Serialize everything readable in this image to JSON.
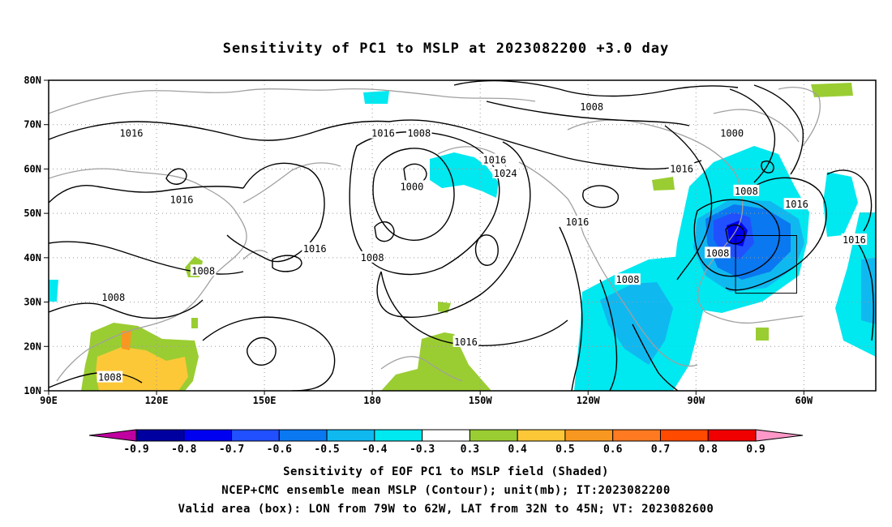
{
  "title": "Sensitivity of PC1 to MSLP at 2023082200 +3.0 day",
  "map": {
    "lat_labels": [
      "80N",
      "70N",
      "60N",
      "50N",
      "40N",
      "30N",
      "20N",
      "10N"
    ],
    "lon_labels": [
      "90E",
      "120E",
      "150E",
      "180",
      "150W",
      "120W",
      "90W",
      "60W"
    ],
    "lon_range_deg_east": [
      90,
      320
    ],
    "lat_range_deg_north": [
      10,
      80
    ],
    "grid": "dotted",
    "contour_color": "#000000",
    "coastline_color": "#a0a0a0",
    "contour_labels": [
      {
        "text": "1016",
        "lon": 113,
        "lat": 68
      },
      {
        "text": "1016",
        "lon": 127,
        "lat": 53
      },
      {
        "text": "1016",
        "lon": 164,
        "lat": 42
      },
      {
        "text": "1008",
        "lon": 133,
        "lat": 37
      },
      {
        "text": "1008",
        "lon": 108,
        "lat": 31
      },
      {
        "text": "1008",
        "lon": 107,
        "lat": 13
      },
      {
        "text": "1016",
        "lon": 183,
        "lat": 68
      },
      {
        "text": "1008",
        "lon": 193,
        "lat": 68
      },
      {
        "text": "1000",
        "lon": 191,
        "lat": 56
      },
      {
        "text": "1008",
        "lon": 180,
        "lat": 40
      },
      {
        "text": "1016",
        "lon": 214,
        "lat": 62
      },
      {
        "text": "1024",
        "lon": 217,
        "lat": 59
      },
      {
        "text": "1008",
        "lon": 241,
        "lat": 74
      },
      {
        "text": "1016",
        "lon": 237,
        "lat": 48
      },
      {
        "text": "1016",
        "lon": 206,
        "lat": 21
      },
      {
        "text": "1008",
        "lon": 251,
        "lat": 35
      },
      {
        "text": "1016",
        "lon": 266,
        "lat": 60
      },
      {
        "text": "1000",
        "lon": 280,
        "lat": 68
      },
      {
        "text": "1008",
        "lon": 284,
        "lat": 55
      },
      {
        "text": "1016",
        "lon": 298,
        "lat": 52
      },
      {
        "text": "1008",
        "lon": 276,
        "lat": 41
      },
      {
        "text": "1016",
        "lon": 314,
        "lat": 44
      }
    ],
    "valid_box": {
      "lon_w": 281,
      "lon_e": 298,
      "lat_s": 32,
      "lat_n": 45
    }
  },
  "colorbar": {
    "labels": [
      "-0.9",
      "-0.8",
      "-0.7",
      "-0.6",
      "-0.5",
      "-0.4",
      "-0.3",
      "0.3",
      "0.4",
      "0.5",
      "0.6",
      "0.7",
      "0.8",
      "0.9"
    ],
    "colors": [
      "#0000a0",
      "#0000f0",
      "#2050ff",
      "#0a78f0",
      "#10b8f0",
      "#00e8f0",
      "#ffffff",
      "#9acd32",
      "#fcc838",
      "#f89820",
      "#ff7a20",
      "#ff4a00",
      "#f00000"
    ],
    "low_end_color": "#c000a0",
    "high_end_color": "#ff98c8"
  },
  "captions": {
    "line1": "Sensitivity of EOF PC1 to MSLP field (Shaded)",
    "line2": "NCEP+CMC ensemble mean MSLP (Contour); unit(mb); IT:2023082200",
    "line3": "Valid area (box): LON from 79W to 62W, LAT from 32N to 45N; VT: 2023082600"
  }
}
